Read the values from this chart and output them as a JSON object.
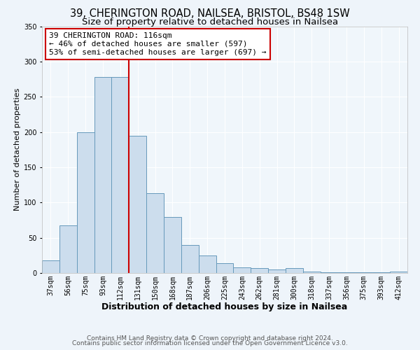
{
  "title1": "39, CHERINGTON ROAD, NAILSEA, BRISTOL, BS48 1SW",
  "title2": "Size of property relative to detached houses in Nailsea",
  "xlabel": "Distribution of detached houses by size in Nailsea",
  "ylabel": "Number of detached properties",
  "footer1": "Contains HM Land Registry data © Crown copyright and database right 2024.",
  "footer2": "Contains public sector information licensed under the Open Government Licence v3.0.",
  "annotation_title": "39 CHERINGTON ROAD: 116sqm",
  "annotation_line1": "← 46% of detached houses are smaller (597)",
  "annotation_line2": "53% of semi-detached houses are larger (697) →",
  "bar_labels": [
    "37sqm",
    "56sqm",
    "75sqm",
    "93sqm",
    "112sqm",
    "131sqm",
    "150sqm",
    "168sqm",
    "187sqm",
    "206sqm",
    "225sqm",
    "243sqm",
    "262sqm",
    "281sqm",
    "300sqm",
    "318sqm",
    "337sqm",
    "356sqm",
    "375sqm",
    "393sqm",
    "412sqm"
  ],
  "bar_values": [
    18,
    68,
    200,
    278,
    278,
    195,
    113,
    79,
    40,
    25,
    14,
    8,
    7,
    5,
    7,
    2,
    1,
    1,
    1,
    1,
    2
  ],
  "bar_color": "#ccdded",
  "bar_edge_color": "#6699bb",
  "vline_color": "#cc0000",
  "annotation_box_color": "#ffffff",
  "annotation_box_edge": "#cc0000",
  "ylim": [
    0,
    350
  ],
  "yticks": [
    0,
    50,
    100,
    150,
    200,
    250,
    300,
    350
  ],
  "background_color": "#eef4fa",
  "plot_bg_color": "#f0f6fb",
  "grid_color": "#ffffff",
  "title1_fontsize": 10.5,
  "title2_fontsize": 9.5,
  "xlabel_fontsize": 9,
  "ylabel_fontsize": 8,
  "tick_fontsize": 7,
  "annot_fontsize": 8,
  "footer_fontsize": 6.5
}
